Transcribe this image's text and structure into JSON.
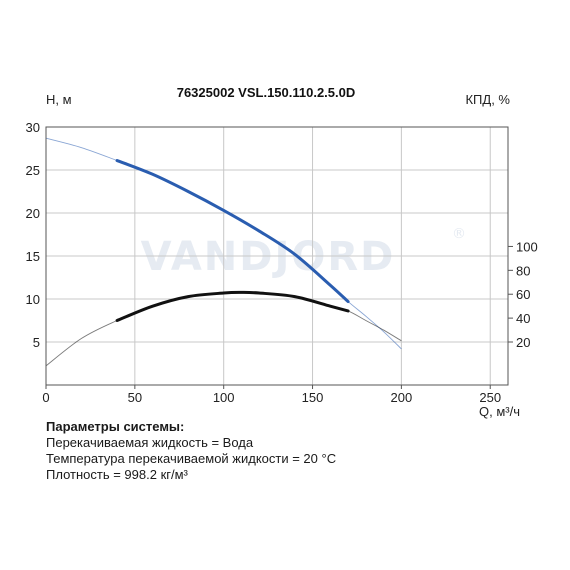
{
  "chart_data": {
    "type": "line",
    "title": "76325002 VSL.150.110.2.5.0D",
    "watermark": "VANDJORD",
    "watermark_mark": "®",
    "xlabel": "Q, м³/ч",
    "ylabel": "H, м",
    "y2label": "КПД, %",
    "xlim": [
      0,
      260
    ],
    "ylim": [
      0,
      30
    ],
    "y2lim": [
      -16,
      200
    ],
    "x_ticks": [
      0,
      50,
      100,
      150,
      200,
      250
    ],
    "y_ticks": [
      5,
      10,
      15,
      20,
      25,
      30
    ],
    "y2_ticks": [
      20,
      40,
      60,
      80,
      100
    ],
    "grid": true,
    "series": [
      {
        "axis": "left",
        "color": "#2a5db0",
        "x": [
          0,
          20,
          40,
          60,
          80,
          100,
          120,
          140,
          160,
          170,
          180,
          190,
          200
        ],
        "y": [
          28.7,
          27.6,
          26.1,
          24.5,
          22.5,
          20.3,
          17.9,
          15.2,
          11.6,
          9.7,
          8.0,
          6.2,
          4.2
        ],
        "range": [
          40,
          170
        ]
      },
      {
        "axis": "right",
        "color": "#111111",
        "x": [
          0,
          20,
          40,
          60,
          80,
          100,
          110,
          120,
          140,
          160,
          170,
          180,
          190,
          200
        ],
        "y": [
          0,
          23,
          38,
          50,
          58,
          61,
          61.5,
          61,
          58,
          50,
          46,
          38,
          30,
          21
        ],
        "range": [
          40,
          170
        ]
      }
    ]
  },
  "params": {
    "header": "Параметры системы:",
    "lines": [
      "Перекачиваемая жидкость = Вода",
      "Температура перекачиваемой жидкости = 20 °C",
      "Плотность = 998.2 кг/м³"
    ]
  }
}
